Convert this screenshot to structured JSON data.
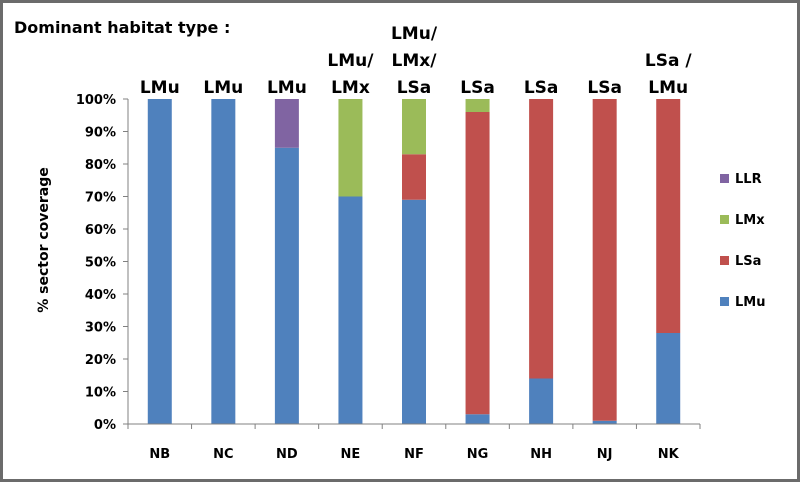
{
  "chart_data": {
    "type": "bar",
    "stacked": true,
    "title": "Dominant habitat type :",
    "ylabel": "% sector coverage",
    "xlabel": "",
    "ylim": [
      0,
      100
    ],
    "yticks": [
      "0%",
      "10%",
      "20%",
      "30%",
      "40%",
      "50%",
      "60%",
      "70%",
      "80%",
      "90%",
      "100%"
    ],
    "categories": [
      "NB",
      "NC",
      "ND",
      "NE",
      "NF",
      "NG",
      "NH",
      "NJ",
      "NK"
    ],
    "dominant_labels": [
      [
        "LMu"
      ],
      [
        "LMu"
      ],
      [
        "LMu"
      ],
      [
        "LMu/",
        "LMx"
      ],
      [
        "LMu/",
        "LMx/",
        "LSa"
      ],
      [
        "LSa"
      ],
      [
        "LSa"
      ],
      [
        "LSa"
      ],
      [
        "LSa /",
        "LMu"
      ]
    ],
    "series": [
      {
        "name": "LMu",
        "color": "#4f81bd",
        "values": [
          100,
          100,
          85,
          70,
          69,
          3,
          14,
          1,
          28
        ]
      },
      {
        "name": "LSa",
        "color": "#c0504d",
        "values": [
          0,
          0,
          0,
          0,
          14,
          93,
          86,
          99,
          72
        ]
      },
      {
        "name": "LMx",
        "color": "#9bbb59",
        "values": [
          0,
          0,
          0,
          30,
          17,
          4,
          0,
          0,
          0
        ]
      },
      {
        "name": "LLR",
        "color": "#8064a2",
        "values": [
          0,
          0,
          15,
          0,
          0,
          0,
          0,
          0,
          0
        ]
      }
    ],
    "legend_order": [
      "LLR",
      "LMx",
      "LSa",
      "LMu"
    ],
    "legend_position": "right",
    "grid": false
  }
}
